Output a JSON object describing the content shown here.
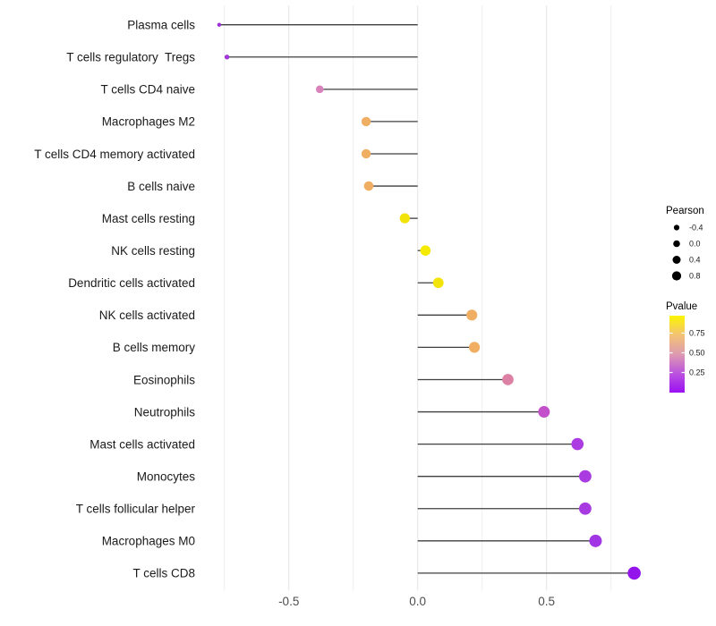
{
  "chart_data": {
    "type": "scatter",
    "subtype": "lollipop",
    "title": "",
    "xlabel": "",
    "ylabel": "",
    "grid": "on",
    "xlim": [
      -0.85,
      0.92
    ],
    "x_major_ticks": [
      -0.5,
      0.0,
      0.5
    ],
    "x_tick_labels": [
      "-0.5",
      "0.0",
      "0.5"
    ],
    "x_minor_ticks": [
      -0.75,
      -0.25,
      0.25,
      0.75
    ],
    "categories": [
      "Plasma cells",
      "T cells regulatory  Tregs",
      "T cells CD4 naive",
      "Macrophages M2",
      "T cells CD4 memory activated",
      "B cells naive",
      "Mast cells resting",
      "NK cells resting",
      "Dendritic cells activated",
      "NK cells activated",
      "B cells memory",
      "Eosinophils",
      "Neutrophils",
      "Mast cells activated",
      "Monocytes",
      "T cells follicular helper",
      "Macrophages M0",
      "T cells CD8"
    ],
    "points": [
      {
        "category": "Plasma cells",
        "pearson": -0.77,
        "pvalue": 0.1,
        "color": "#9B2FD8",
        "radius": 2.2
      },
      {
        "category": "T cells regulatory  Tregs",
        "pearson": -0.74,
        "pvalue": 0.12,
        "color": "#A136DA",
        "radius": 2.7
      },
      {
        "category": "T cells CD4 naive",
        "pearson": -0.38,
        "pvalue": 0.33,
        "color": "#D983BC",
        "radius": 4.3
      },
      {
        "category": "Macrophages M2",
        "pearson": -0.2,
        "pvalue": 0.6,
        "color": "#F0AE63",
        "radius": 5.2
      },
      {
        "category": "T cells CD4 memory activated",
        "pearson": -0.2,
        "pvalue": 0.6,
        "color": "#F0AE63",
        "radius": 5.2
      },
      {
        "category": "B cells naive",
        "pearson": -0.19,
        "pvalue": 0.6,
        "color": "#F0AE63",
        "radius": 5.3
      },
      {
        "category": "Mast cells resting",
        "pearson": -0.05,
        "pvalue": 0.85,
        "color": "#F2E30B",
        "radius": 5.6
      },
      {
        "category": "NK cells resting",
        "pearson": 0.03,
        "pvalue": 0.9,
        "color": "#F6EB00",
        "radius": 5.8
      },
      {
        "category": "Dendritic cells activated",
        "pearson": 0.08,
        "pvalue": 0.85,
        "color": "#F2E30B",
        "radius": 5.9
      },
      {
        "category": "NK cells activated",
        "pearson": 0.21,
        "pvalue": 0.6,
        "color": "#F0AE63",
        "radius": 6.1
      },
      {
        "category": "B cells memory",
        "pearson": 0.22,
        "pvalue": 0.58,
        "color": "#F0AE63",
        "radius": 6.1
      },
      {
        "category": "Eosinophils",
        "pearson": 0.35,
        "pvalue": 0.4,
        "color": "#DC81A4",
        "radius": 6.3
      },
      {
        "category": "Neutrophils",
        "pearson": 0.49,
        "pvalue": 0.22,
        "color": "#C250CA",
        "radius": 6.5
      },
      {
        "category": "Mast cells activated",
        "pearson": 0.62,
        "pvalue": 0.14,
        "color": "#AC3BE2",
        "radius": 6.8
      },
      {
        "category": "Monocytes",
        "pearson": 0.65,
        "pvalue": 0.13,
        "color": "#A93BE0",
        "radius": 6.9
      },
      {
        "category": "T cells follicular helper",
        "pearson": 0.65,
        "pvalue": 0.13,
        "color": "#A83AE2",
        "radius": 6.9
      },
      {
        "category": "Macrophages M0",
        "pearson": 0.69,
        "pvalue": 0.09,
        "color": "#A136E4",
        "radius": 7.0
      },
      {
        "category": "T cells CD8",
        "pearson": 0.84,
        "pvalue": 0.03,
        "color": "#9414EC",
        "radius": 7.3
      }
    ],
    "legend_position": "right"
  },
  "legend": {
    "size_legend": {
      "title": "Pearson",
      "entries": [
        {
          "label": "-0.4",
          "radius": 3.1
        },
        {
          "label": "0.0",
          "radius": 3.8
        },
        {
          "label": "0.4",
          "radius": 4.5
        },
        {
          "label": "0.8",
          "radius": 5.1
        }
      ],
      "swatch_color": "#000000"
    },
    "color_legend": {
      "title": "Pvalue",
      "tick_labels": [
        "0.75",
        "0.50",
        "0.25"
      ],
      "gradient_stops": [
        "#FCF500",
        "#F3C373",
        "#DE9BB0",
        "#BC53DE",
        "#9A10F2"
      ],
      "range": [
        0.0,
        0.97
      ]
    }
  },
  "style": {
    "stem_color": "#3F3F3F",
    "grid_major_color": "#E4E4E4",
    "grid_minor_color": "#EFEFEF",
    "axis_text_color": "#4D4D4D",
    "label_text_color": "#1A1A1A",
    "background": "#FFFFFF"
  }
}
